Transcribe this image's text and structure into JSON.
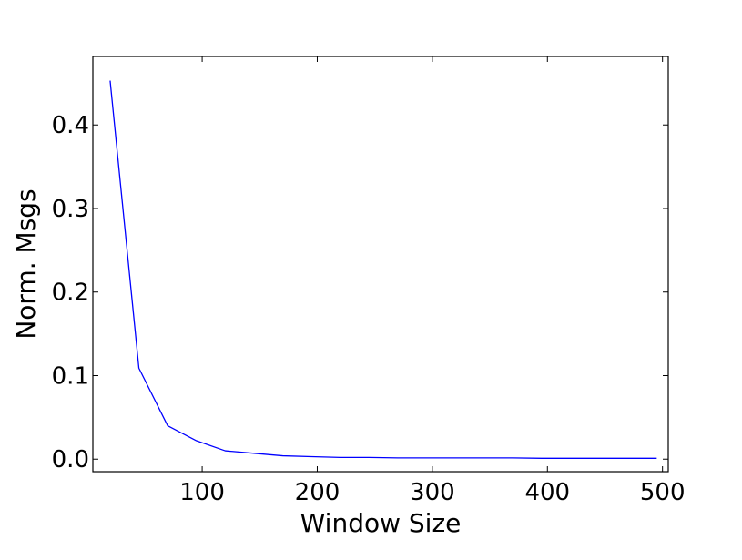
{
  "chart_data": {
    "type": "line",
    "title": "",
    "xlabel": "Window Size",
    "ylabel": "Norm. Msgs",
    "xlim": [
      5,
      505
    ],
    "ylim": [
      -0.015,
      0.482
    ],
    "grid": false,
    "x_ticks": [
      100,
      200,
      300,
      400,
      500
    ],
    "x_tick_labels": [
      "100",
      "200",
      "300",
      "400",
      "500"
    ],
    "y_ticks": [
      0.0,
      0.1,
      0.2,
      0.3,
      0.4
    ],
    "y_tick_labels": [
      "0.0",
      "0.1",
      "0.2",
      "0.3",
      "0.4"
    ],
    "series": [
      {
        "color": "#0000ff",
        "x": [
          20,
          45,
          70,
          95,
          120,
          145,
          170,
          195,
          220,
          245,
          270,
          295,
          320,
          345,
          370,
          395,
          420,
          445,
          470,
          495
        ],
        "y": [
          0.453,
          0.109,
          0.04,
          0.022,
          0.01,
          0.007,
          0.004,
          0.003,
          0.002,
          0.002,
          0.0015,
          0.0015,
          0.0015,
          0.0015,
          0.0015,
          0.001,
          0.001,
          0.001,
          0.001,
          0.001
        ]
      }
    ]
  }
}
